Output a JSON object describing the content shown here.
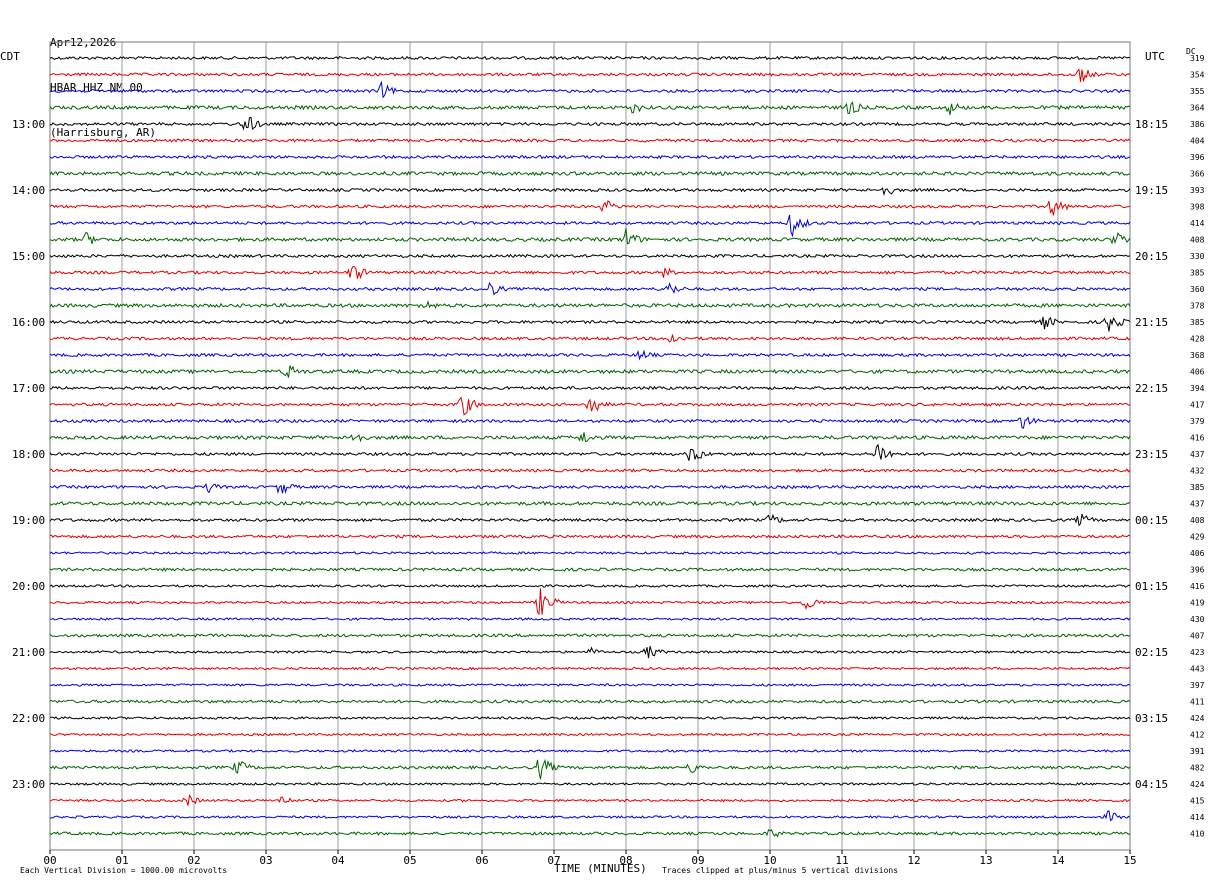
{
  "header": {
    "date": "Apr12,2026",
    "station": "HBAR HHZ NM 00",
    "location": "(Harrisburg, AR)"
  },
  "left_tz": "CDT",
  "right_tz": "UTC",
  "dc_label": "DC",
  "footer": {
    "left": "Each Vertical Division = 1000.00 microvolts",
    "center": "TIME (MINUTES)",
    "right": "Traces clipped at plus/minus 5 vertical divisions"
  },
  "colors": {
    "cycle": [
      "#000000",
      "#e00000",
      "#0000e0",
      "#006400"
    ],
    "grid": "#9a9aa6"
  },
  "chart_data": {
    "type": "line",
    "title": "",
    "xlabel": "TIME (MINUTES)",
    "x_ticks": [
      "00",
      "01",
      "02",
      "03",
      "04",
      "05",
      "06",
      "07",
      "08",
      "09",
      "10",
      "11",
      "12",
      "13",
      "14",
      "15"
    ],
    "xlim": [
      0,
      15
    ],
    "left_hour_labels": [
      "13:00",
      "14:00",
      "15:00",
      "16:00",
      "17:00",
      "18:00",
      "19:00",
      "20:00",
      "21:00",
      "22:00",
      "23:00"
    ],
    "right_hour_labels": [
      "18:15",
      "19:15",
      "20:15",
      "21:15",
      "22:15",
      "23:15",
      "00:15",
      "01:15",
      "02:15",
      "03:15",
      "04:15"
    ],
    "dc_offsets": [
      "319",
      "354",
      "355",
      "364",
      "386",
      "404",
      "396",
      "366",
      "393",
      "398",
      "414",
      "408",
      "330",
      "385",
      "360",
      "378",
      "385",
      "428",
      "368",
      "406",
      "394",
      "417",
      "379",
      "416",
      "437",
      "432",
      "385",
      "437",
      "408",
      "429",
      "406",
      "396",
      "416",
      "419",
      "430",
      "407",
      "423",
      "443",
      "397",
      "411",
      "424",
      "412",
      "391",
      "482",
      "424",
      "415",
      "414",
      "410"
    ],
    "events": [
      {
        "row": 1,
        "minute": 14.3,
        "amp": 10
      },
      {
        "row": 2,
        "minute": 4.6,
        "amp": 9
      },
      {
        "row": 3,
        "minute": 8.1,
        "amp": 7
      },
      {
        "row": 3,
        "minute": 11.1,
        "amp": 9
      },
      {
        "row": 3,
        "minute": 12.5,
        "amp": 8
      },
      {
        "row": 4,
        "minute": 2.7,
        "amp": 13
      },
      {
        "row": 8,
        "minute": 11.6,
        "amp": 7
      },
      {
        "row": 9,
        "minute": 7.7,
        "amp": 8
      },
      {
        "row": 9,
        "minute": 13.9,
        "amp": 12
      },
      {
        "row": 10,
        "minute": 10.3,
        "amp": 14
      },
      {
        "row": 11,
        "minute": 0.5,
        "amp": 8
      },
      {
        "row": 11,
        "minute": 8.0,
        "amp": 12
      },
      {
        "row": 11,
        "minute": 14.8,
        "amp": 10
      },
      {
        "row": 13,
        "minute": 4.2,
        "amp": 11
      },
      {
        "row": 13,
        "minute": 8.5,
        "amp": 7
      },
      {
        "row": 14,
        "minute": 6.1,
        "amp": 9
      },
      {
        "row": 14,
        "minute": 8.6,
        "amp": 8
      },
      {
        "row": 15,
        "minute": 5.2,
        "amp": 7
      },
      {
        "row": 16,
        "minute": 13.8,
        "amp": 8
      },
      {
        "row": 16,
        "minute": 14.7,
        "amp": 12
      },
      {
        "row": 17,
        "minute": 8.6,
        "amp": 8
      },
      {
        "row": 18,
        "minute": 8.2,
        "amp": 7
      },
      {
        "row": 19,
        "minute": 3.3,
        "amp": 9
      },
      {
        "row": 21,
        "minute": 5.7,
        "amp": 15
      },
      {
        "row": 21,
        "minute": 7.5,
        "amp": 12
      },
      {
        "row": 22,
        "minute": 13.5,
        "amp": 9
      },
      {
        "row": 23,
        "minute": 4.2,
        "amp": 9
      },
      {
        "row": 23,
        "minute": 7.4,
        "amp": 8
      },
      {
        "row": 24,
        "minute": 8.9,
        "amp": 11
      },
      {
        "row": 24,
        "minute": 11.5,
        "amp": 14
      },
      {
        "row": 26,
        "minute": 2.2,
        "amp": 6
      },
      {
        "row": 26,
        "minute": 3.2,
        "amp": 9
      },
      {
        "row": 28,
        "minute": 10.0,
        "amp": 7
      },
      {
        "row": 28,
        "minute": 14.3,
        "amp": 8
      },
      {
        "row": 33,
        "minute": 6.8,
        "amp": 16
      },
      {
        "row": 33,
        "minute": 10.5,
        "amp": 9
      },
      {
        "row": 36,
        "minute": 8.3,
        "amp": 8
      },
      {
        "row": 36,
        "minute": 7.5,
        "amp": 5
      },
      {
        "row": 43,
        "minute": 2.6,
        "amp": 9
      },
      {
        "row": 43,
        "minute": 6.8,
        "amp": 13
      },
      {
        "row": 43,
        "minute": 8.9,
        "amp": 7
      },
      {
        "row": 45,
        "minute": 1.9,
        "amp": 7
      },
      {
        "row": 45,
        "minute": 3.2,
        "amp": 6
      },
      {
        "row": 46,
        "minute": 14.7,
        "amp": 7
      },
      {
        "row": 47,
        "minute": 10.0,
        "amp": 6
      }
    ]
  }
}
